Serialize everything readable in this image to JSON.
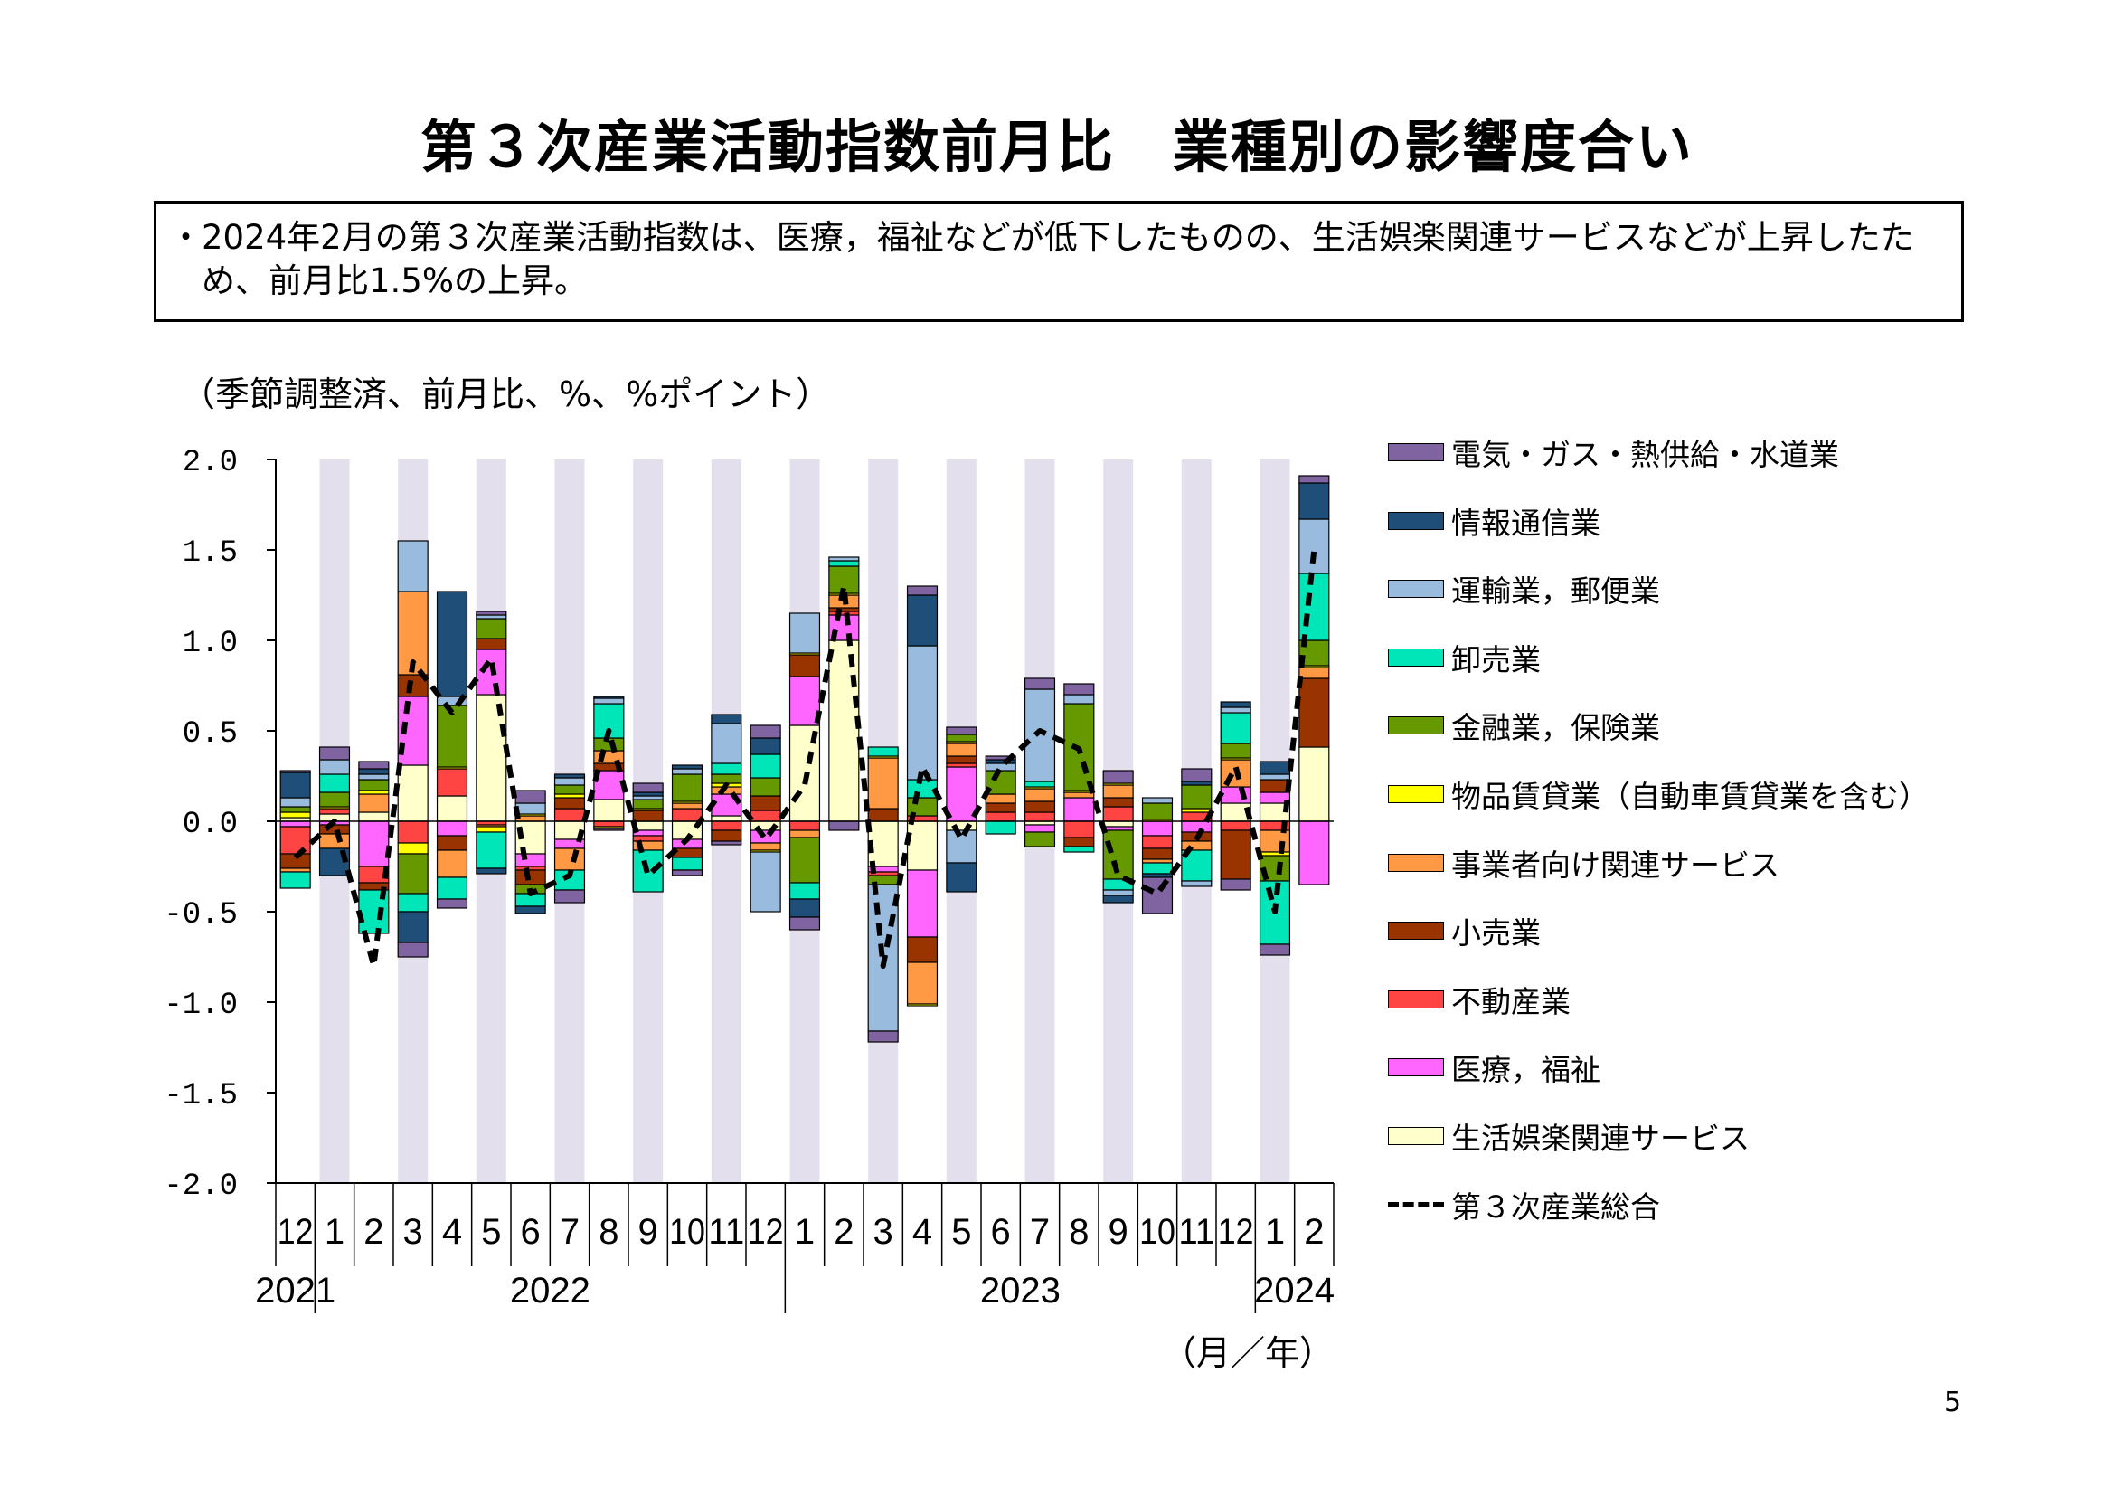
{
  "page": {
    "title": "第３次産業活動指数前月比　業種別の影響度合い",
    "summary_bullet": "・",
    "summary": "2024年2月の第３次産業活動指数は、医療，福祉などが低下したものの、生活娯楽関連サービスなどが上昇したため、前月比1.5%の上昇。",
    "unit_note": "（季節調整済、前月比、%、%ポイント）",
    "month_unit": "（月／年）",
    "page_number": "5"
  },
  "chart_data": {
    "type": "bar",
    "stacked": true,
    "ylim": [
      -2.0,
      2.0
    ],
    "yticks": [
      "2.0",
      "1.5",
      "1.0",
      "0.5",
      "0.0",
      "-0.5",
      "-1.0",
      "-1.5",
      "-2.0"
    ],
    "categories": [
      "12",
      "1",
      "2",
      "3",
      "4",
      "5",
      "6",
      "7",
      "8",
      "9",
      "10",
      "11",
      "12",
      "1",
      "2",
      "3",
      "4",
      "5",
      "6",
      "7",
      "8",
      "9",
      "10",
      "11",
      "12",
      "1",
      "2"
    ],
    "years": [
      {
        "label": "2021",
        "from": 0,
        "to": 0
      },
      {
        "label": "2022",
        "from": 1,
        "to": 12
      },
      {
        "label": "2023",
        "from": 13,
        "to": 24
      },
      {
        "label": "2024",
        "from": 25,
        "to": 26
      }
    ],
    "series": [
      {
        "name": "生活娯楽関連サービス",
        "color": "#ffffcc",
        "values": [
          0.02,
          0.04,
          0.05,
          0.31,
          0.14,
          0.7,
          -0.18,
          -0.1,
          0.12,
          -0.05,
          -0.1,
          0.03,
          -0.05,
          0.53,
          1.0,
          -0.25,
          -0.27,
          -0.05,
          0.0,
          -0.02,
          0.0,
          -0.03,
          0.0,
          0.0,
          0.1,
          0.1,
          0.41
        ]
      },
      {
        "name": "医療，福祉",
        "color": "#ff66ff",
        "values": [
          -0.03,
          -0.02,
          -0.25,
          0.38,
          -0.08,
          0.25,
          -0.07,
          -0.05,
          0.16,
          -0.03,
          -0.05,
          0.12,
          -0.07,
          0.27,
          0.14,
          -0.03,
          -0.37,
          0.3,
          0.0,
          -0.04,
          0.13,
          -0.02,
          -0.08,
          -0.06,
          0.09,
          0.06,
          -0.35
        ]
      },
      {
        "name": "不動産業",
        "color": "#ff4444",
        "values": [
          -0.15,
          0.03,
          -0.09,
          -0.12,
          0.15,
          -0.02,
          -0.02,
          0.07,
          -0.03,
          -0.03,
          0.07,
          -0.05,
          0.06,
          -0.05,
          0.02,
          -0.02,
          0.03,
          0.02,
          0.05,
          0.05,
          -0.09,
          0.08,
          -0.07,
          0.05,
          -0.05,
          -0.05,
          0.0
        ]
      },
      {
        "name": "小売業",
        "color": "#993300",
        "values": [
          -0.08,
          -0.05,
          -0.04,
          0.12,
          -0.08,
          0.06,
          -0.08,
          0.06,
          0.04,
          0.06,
          -0.05,
          -0.06,
          0.08,
          0.12,
          0.02,
          0.07,
          -0.14,
          0.04,
          0.05,
          0.06,
          -0.05,
          0.05,
          -0.06,
          -0.05,
          -0.27,
          0.07,
          0.38
        ]
      },
      {
        "name": "事業者向け関連サービス",
        "color": "#ff9944",
        "values": [
          -0.02,
          -0.08,
          0.1,
          0.46,
          -0.15,
          -0.01,
          0.03,
          -0.12,
          0.07,
          -0.05,
          0.03,
          0.04,
          -0.04,
          -0.04,
          0.07,
          0.28,
          -0.23,
          0.07,
          0.05,
          0.07,
          0.03,
          0.07,
          -0.02,
          -0.05,
          0.15,
          -0.12,
          0.06
        ]
      },
      {
        "name": "物品賃貸業（自動車賃貸業を含む）",
        "color": "#ffff00",
        "values": [
          0.03,
          0.01,
          0.02,
          -0.06,
          0.01,
          -0.03,
          0.01,
          0.02,
          -0.01,
          0.01,
          0.01,
          0.02,
          -0.01,
          0.01,
          0.01,
          0.01,
          -0.01,
          0.01,
          0.0,
          0.01,
          0.01,
          0.01,
          0.01,
          0.02,
          0.01,
          -0.02,
          0.01
        ]
      },
      {
        "name": "金融業，保険業",
        "color": "#669900",
        "values": [
          0.03,
          0.08,
          0.06,
          -0.22,
          0.34,
          0.11,
          -0.05,
          0.05,
          0.07,
          0.05,
          0.15,
          0.05,
          0.1,
          -0.25,
          0.15,
          -0.05,
          0.1,
          0.04,
          0.13,
          -0.08,
          0.48,
          -0.27,
          0.09,
          0.13,
          0.08,
          -0.14,
          0.14
        ]
      },
      {
        "name": "卸売業",
        "color": "#00e6b8",
        "values": [
          -0.09,
          0.1,
          -0.24,
          -0.1,
          -0.12,
          -0.2,
          -0.07,
          -0.11,
          0.19,
          -0.23,
          -0.07,
          0.06,
          0.13,
          -0.09,
          0.03,
          0.05,
          0.1,
          0.0,
          -0.07,
          0.03,
          -0.03,
          -0.06,
          -0.06,
          -0.17,
          0.17,
          -0.35,
          0.37
        ]
      },
      {
        "name": "運輸業，郵便業",
        "color": "#99bbdd",
        "values": [
          0.05,
          0.08,
          0.03,
          0.28,
          0.05,
          0.02,
          0.06,
          0.04,
          0.03,
          0.02,
          0.03,
          0.22,
          -0.33,
          0.22,
          0.02,
          -0.81,
          0.74,
          -0.18,
          0.04,
          0.51,
          0.05,
          -0.03,
          0.03,
          -0.03,
          0.03,
          0.03,
          0.3
        ]
      },
      {
        "name": "情報通信業",
        "color": "#1f4e79",
        "values": [
          0.14,
          -0.15,
          0.03,
          -0.17,
          0.58,
          -0.03,
          -0.04,
          0.02,
          0.01,
          0.02,
          0.02,
          0.05,
          0.09,
          -0.1,
          0.0,
          0.0,
          0.28,
          -0.16,
          0.02,
          0.0,
          0.0,
          -0.04,
          -0.02,
          0.02,
          0.03,
          0.07,
          0.2
        ]
      },
      {
        "name": "電気・ガス・熱供給・水道業",
        "color": "#8064a2",
        "values": [
          0.01,
          0.07,
          0.04,
          -0.08,
          -0.05,
          0.02,
          0.07,
          -0.07,
          -0.01,
          0.05,
          -0.03,
          -0.02,
          0.07,
          -0.07,
          -0.05,
          -0.06,
          0.05,
          0.04,
          0.02,
          0.06,
          0.06,
          0.07,
          -0.2,
          0.07,
          -0.06,
          -0.06,
          0.04
        ]
      }
    ],
    "line": {
      "name": "第３次産業総合",
      "values": [
        -0.2,
        0.0,
        -0.8,
        0.88,
        0.6,
        0.9,
        -0.4,
        -0.3,
        0.5,
        -0.3,
        -0.1,
        0.2,
        -0.1,
        0.2,
        1.3,
        -0.8,
        0.3,
        -0.1,
        0.3,
        0.5,
        0.4,
        -0.3,
        -0.4,
        -0.1,
        0.3,
        -0.5,
        1.5
      ]
    },
    "legend_order": [
      "電気・ガス・熱供給・水道業",
      "情報通信業",
      "運輸業，郵便業",
      "卸売業",
      "金融業，保険業",
      "物品賃貸業（自動車賃貸業を含む）",
      "事業者向け関連サービス",
      "小売業",
      "不動産業",
      "医療，福祉",
      "生活娯楽関連サービス",
      "第３次産業総合"
    ],
    "band_color": "#e3dfec"
  }
}
